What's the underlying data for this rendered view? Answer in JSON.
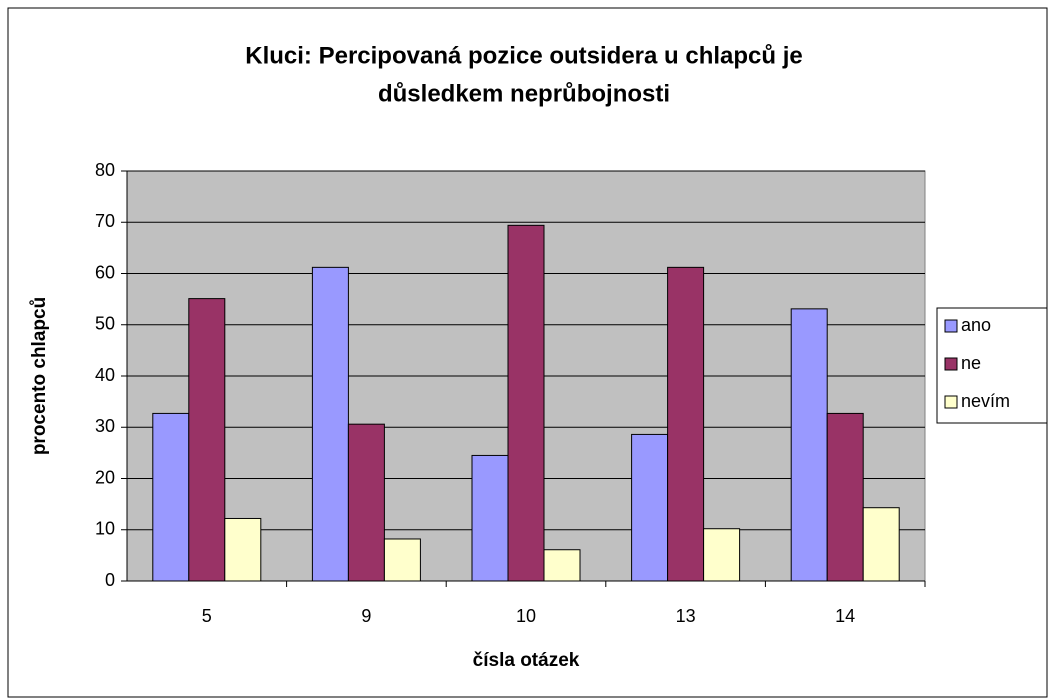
{
  "chart_data": {
    "type": "bar",
    "title": "Kluci: Percipovaná pozice outsidera u chlapců je důsledkem neprůbojnosti",
    "title_lines": [
      "Kluci: Percipovaná pozice outsidera u chlapců je",
      "důsledkem neprůbojnosti"
    ],
    "x_label": "čísla otázek",
    "y_label": "procento chlapců",
    "categories": [
      "5",
      "9",
      "10",
      "13",
      "14"
    ],
    "series": [
      {
        "name": "ano",
        "color": "#9999ff",
        "values": [
          32.7,
          61.2,
          24.5,
          28.6,
          53.1
        ]
      },
      {
        "name": "ne",
        "color": "#993366",
        "values": [
          55.1,
          30.6,
          69.4,
          61.2,
          32.7
        ]
      },
      {
        "name": "nevím",
        "color": "#ffffcc",
        "values": [
          12.2,
          8.2,
          6.1,
          10.2,
          14.3
        ]
      }
    ],
    "ylim": [
      0,
      80
    ],
    "yticks": [
      0,
      10,
      20,
      30,
      40,
      50,
      60,
      70,
      80
    ],
    "grid": true,
    "legend": "right"
  }
}
